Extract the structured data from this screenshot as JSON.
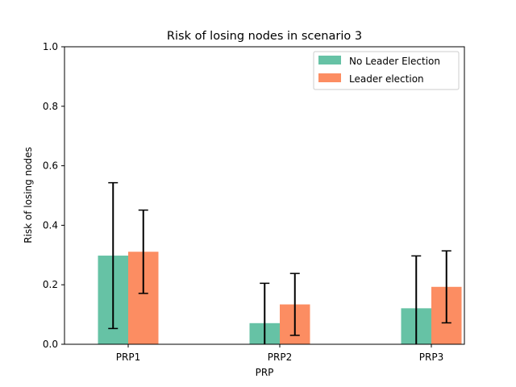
{
  "chart_data": {
    "type": "bar",
    "title": "Risk of losing nodes in scenario 3",
    "xlabel": "PRP",
    "ylabel": "Risk of losing nodes",
    "categories": [
      "PRP1",
      "PRP2",
      "PRP3"
    ],
    "ylim": [
      0,
      1.0
    ],
    "yticks": [
      "0.0",
      "0.2",
      "0.4",
      "0.6",
      "0.8",
      "1.0"
    ],
    "grid": false,
    "legend_position": "top-right",
    "series": [
      {
        "name": "No Leader Election",
        "color": "#66c2a5",
        "values": [
          0.298,
          0.071,
          0.121
        ],
        "error": [
          0.245,
          0.134,
          0.176
        ]
      },
      {
        "name": "Leader election",
        "color": "#fc8d62",
        "values": [
          0.311,
          0.134,
          0.193
        ],
        "error": [
          0.14,
          0.104,
          0.121
        ]
      }
    ]
  }
}
